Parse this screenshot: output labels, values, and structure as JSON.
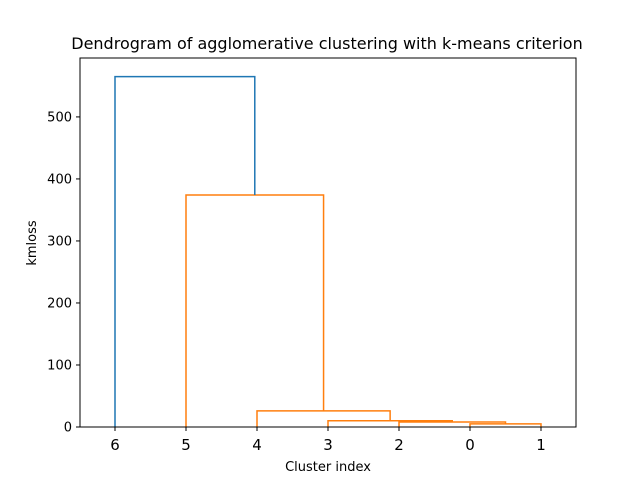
{
  "chart_data": {
    "type": "dendrogram",
    "title": "Dendrogram of agglomerative clustering with k-means criterion",
    "xlabel": "Cluster index",
    "ylabel": "kmloss",
    "ylim": [
      0,
      595
    ],
    "yticks": [
      0,
      100,
      200,
      300,
      400,
      500
    ],
    "grid": false,
    "leaves": [
      "6",
      "5",
      "4",
      "3",
      "2",
      "0",
      "1"
    ],
    "colors": {
      "above_threshold": "#1f77b4",
      "cluster": "#ff7f0e"
    },
    "merges": [
      {
        "left": 5.5,
        "right": 6.5,
        "height": 5,
        "left_base": 0,
        "right_base": 0,
        "color": "cluster"
      },
      {
        "left": 4.5,
        "right": 6.0,
        "height": 8,
        "left_base": 0,
        "right_base": 5,
        "color": "cluster"
      },
      {
        "left": 3.5,
        "right": 5.25,
        "height": 10,
        "left_base": 0,
        "right_base": 8,
        "color": "cluster"
      },
      {
        "left": 2.5,
        "right": 4.375,
        "height": 26,
        "left_base": 0,
        "right_base": 10,
        "color": "cluster"
      },
      {
        "left": 1.5,
        "right": 3.4375,
        "height": 374,
        "left_base": 0,
        "right_base": 26,
        "color": "cluster"
      },
      {
        "left": 0.5,
        "right": 2.46875,
        "height": 565,
        "left_base": 0,
        "right_base": 374,
        "color": "above_threshold"
      }
    ]
  }
}
